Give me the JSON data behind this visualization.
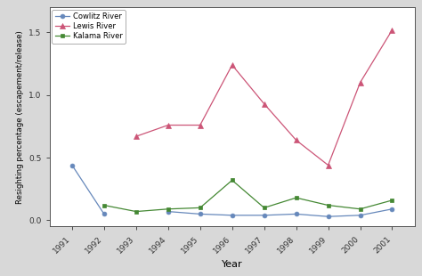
{
  "years": [
    1991,
    1992,
    1993,
    1994,
    1995,
    1996,
    1997,
    1998,
    1999,
    2000,
    2001
  ],
  "cowlitz": [
    0.44,
    0.05,
    null,
    0.07,
    0.05,
    0.04,
    0.04,
    0.05,
    0.03,
    0.04,
    0.09
  ],
  "lewis": [
    null,
    null,
    0.67,
    0.76,
    0.76,
    1.24,
    0.93,
    0.64,
    0.44,
    1.1,
    1.52
  ],
  "kalama": [
    null,
    0.12,
    0.07,
    0.09,
    0.1,
    0.32,
    0.1,
    0.18,
    0.12,
    0.09,
    0.16
  ],
  "cowlitz_color": "#6688bb",
  "lewis_color": "#cc5577",
  "kalama_color": "#448833",
  "xlabel": "Year",
  "ylabel": "Resighting percentage (escapement/release)",
  "ylim": [
    -0.05,
    1.7
  ],
  "legend_labels": [
    "Cowlitz River",
    "Lewis River",
    "Kalama River"
  ],
  "bg_color": "#ffffff",
  "outer_bg": "#d8d8d8"
}
